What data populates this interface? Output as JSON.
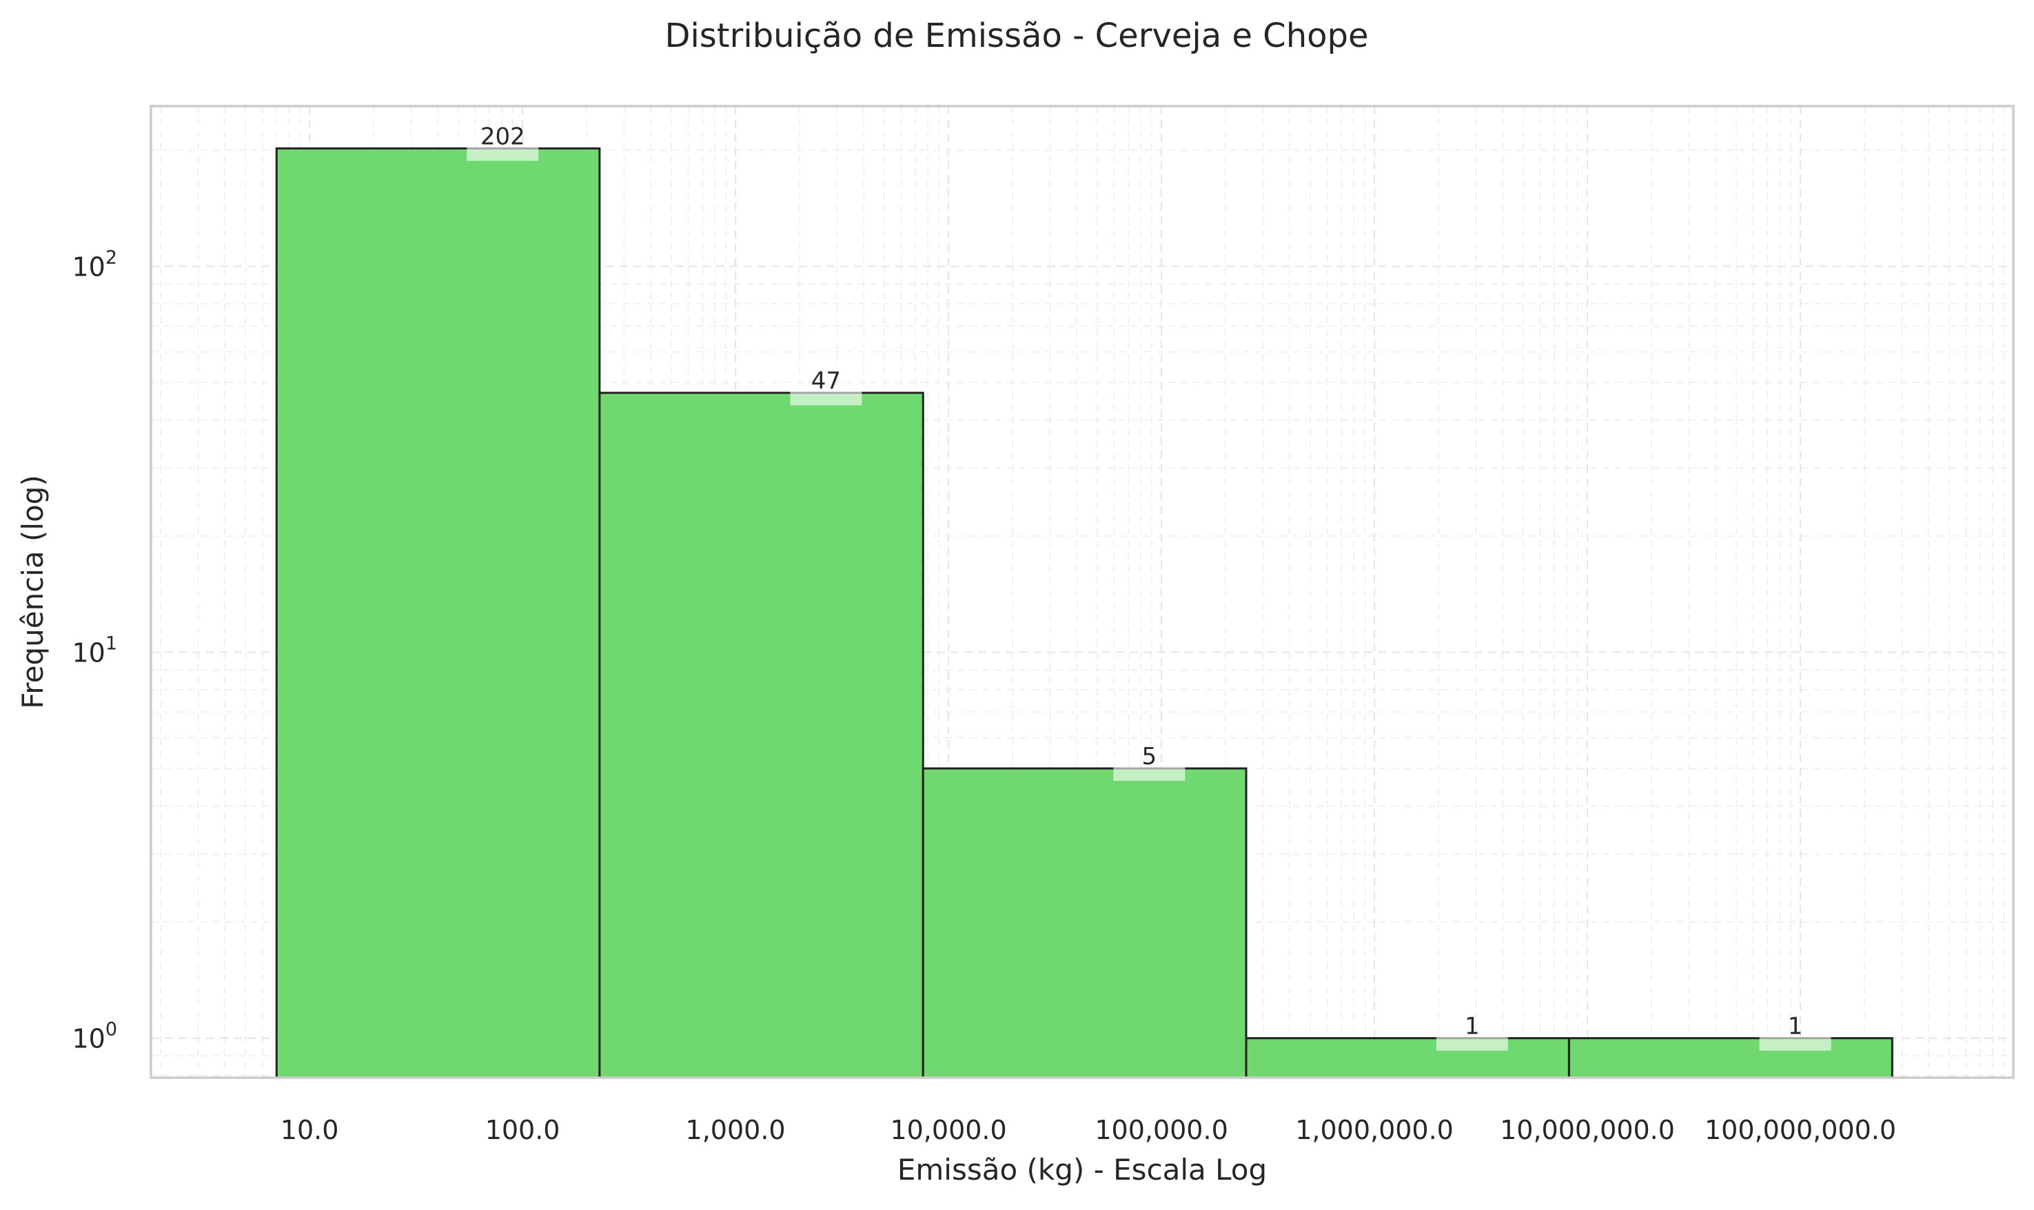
{
  "chart_data": {
    "type": "bar",
    "title": "Distribuição de Emissão - Cerveja e Chope",
    "xlabel": "Emissão (kg) - Escala Log",
    "ylabel": "Frequência (log)",
    "x_scale": "log",
    "y_scale": "log",
    "xlim": [
      1.8,
      1000000000
    ],
    "ylim": [
      0.79,
      260
    ],
    "bar_color": "#6fd96f",
    "edge_color": "#222222",
    "grid": true,
    "x_ticks": [
      {
        "value": 10,
        "label": "10.0"
      },
      {
        "value": 100,
        "label": "100.0"
      },
      {
        "value": 1000,
        "label": "1,000.0"
      },
      {
        "value": 10000,
        "label": "10,000.0"
      },
      {
        "value": 100000,
        "label": "100,000.0"
      },
      {
        "value": 1000000,
        "label": "1,000,000.0"
      },
      {
        "value": 10000000,
        "label": "10,000,000.0"
      },
      {
        "value": 100000000,
        "label": "100,000,000.0"
      }
    ],
    "y_ticks": [
      {
        "value": 1,
        "base": "10",
        "exp": "0"
      },
      {
        "value": 10,
        "base": "10",
        "exp": "1"
      },
      {
        "value": 100,
        "base": "10",
        "exp": "2"
      }
    ],
    "bins": [
      {
        "x0": 7,
        "x1": 230,
        "count": 202,
        "label": "202"
      },
      {
        "x0": 230,
        "x1": 7600,
        "count": 47,
        "label": "47"
      },
      {
        "x0": 7600,
        "x1": 250000,
        "count": 5,
        "label": "5"
      },
      {
        "x0": 250000,
        "x1": 8200000,
        "count": 1,
        "label": "1"
      },
      {
        "x0": 8200000,
        "x1": 270000000,
        "count": 1,
        "label": "1"
      }
    ]
  }
}
